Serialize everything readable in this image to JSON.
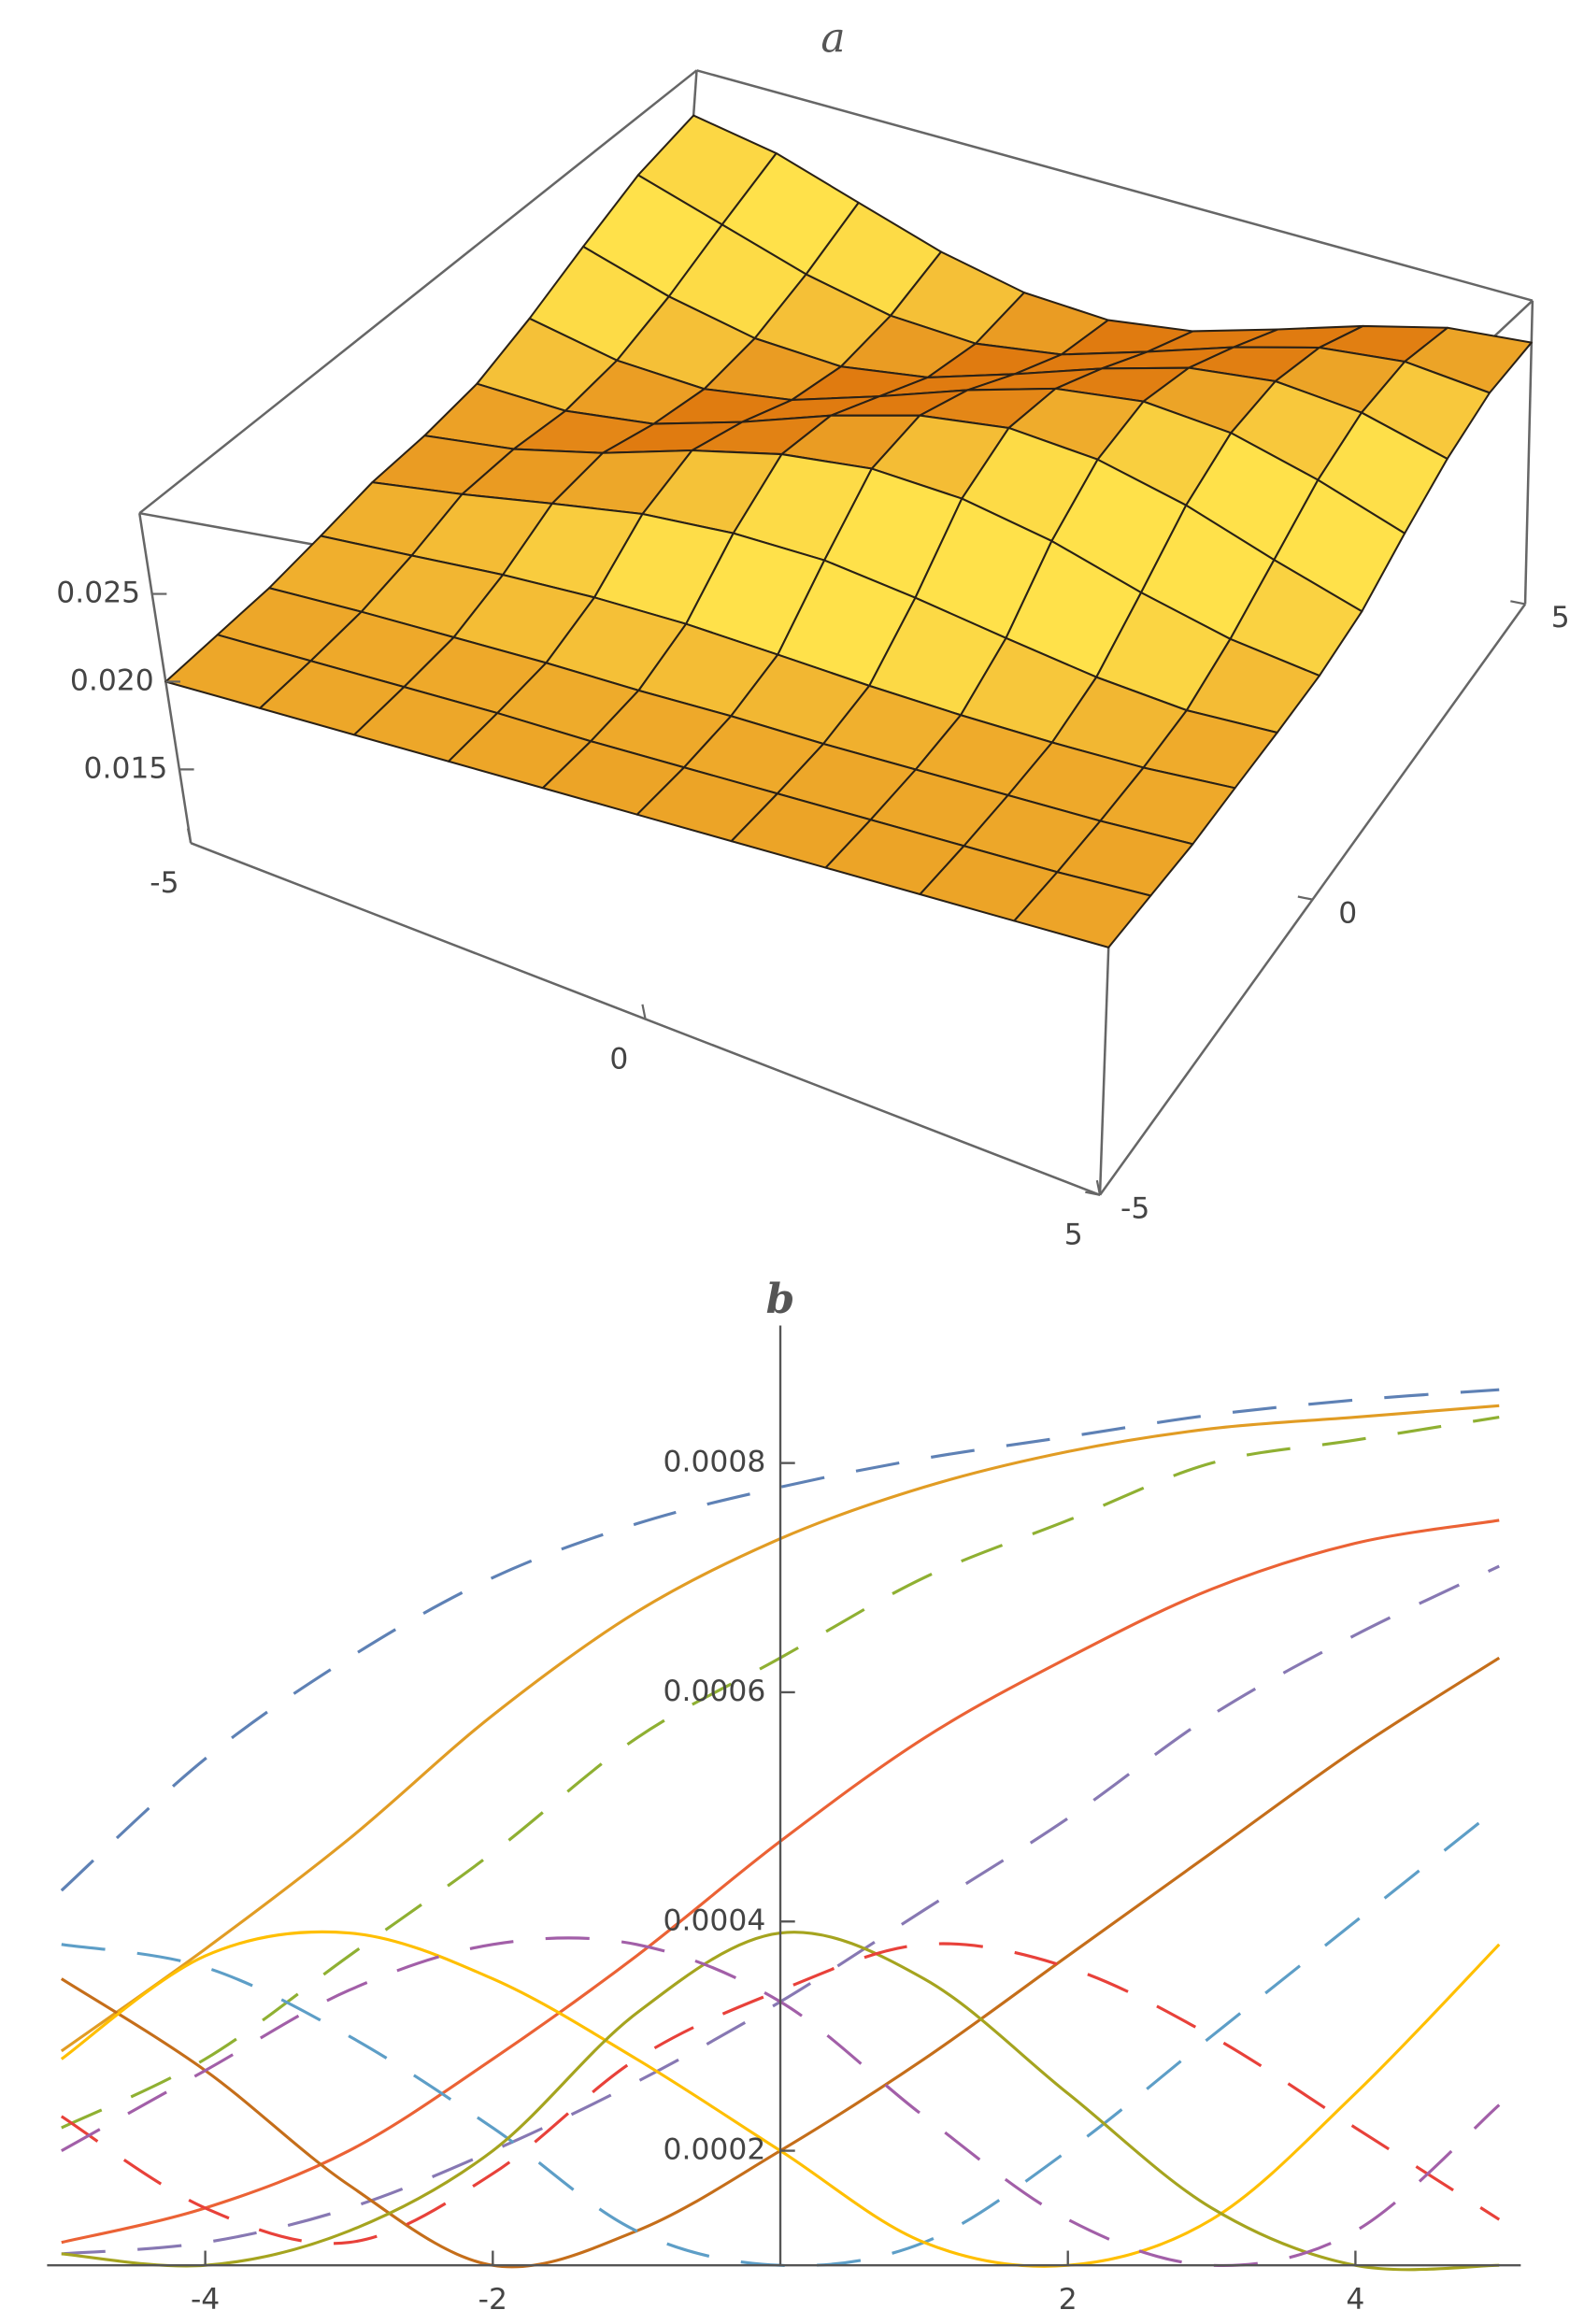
{
  "chart_data": [
    {
      "type": "surface",
      "title": "a",
      "x": [
        -5,
        -4,
        -3,
        -2,
        -1,
        0,
        1,
        2,
        3,
        4,
        5
      ],
      "y": [
        -5,
        -4,
        -3,
        -2,
        -1,
        0,
        1,
        2,
        3,
        4,
        5
      ],
      "z": [
        [
          0.02,
          0.02,
          0.02,
          0.02,
          0.02,
          0.02,
          0.02,
          0.02,
          0.02,
          0.02,
          0.02
        ],
        [
          0.0201,
          0.0201,
          0.0201,
          0.0201,
          0.02,
          0.02,
          0.02,
          0.02,
          0.02,
          0.02,
          0.0201
        ],
        [
          0.0202,
          0.0203,
          0.0203,
          0.0203,
          0.0202,
          0.0202,
          0.0201,
          0.0201,
          0.0201,
          0.0201,
          0.0202
        ],
        [
          0.0206,
          0.0209,
          0.0212,
          0.0213,
          0.0212,
          0.0209,
          0.0206,
          0.0204,
          0.0203,
          0.0203,
          0.0205
        ],
        [
          0.0211,
          0.0218,
          0.0226,
          0.0233,
          0.0235,
          0.0233,
          0.0226,
          0.0218,
          0.0211,
          0.0207,
          0.0208
        ],
        [
          0.0212,
          0.0218,
          0.0229,
          0.0243,
          0.0253,
          0.0257,
          0.0253,
          0.0243,
          0.0229,
          0.0218,
          0.0212
        ],
        [
          0.0216,
          0.0214,
          0.022,
          0.0234,
          0.025,
          0.0262,
          0.0267,
          0.0262,
          0.025,
          0.0234,
          0.022
        ],
        [
          0.0228,
          0.0217,
          0.0214,
          0.0221,
          0.0236,
          0.0252,
          0.0265,
          0.027,
          0.0265,
          0.0252,
          0.0236
        ],
        [
          0.0244,
          0.0228,
          0.0217,
          0.0214,
          0.0221,
          0.0236,
          0.0252,
          0.0265,
          0.027,
          0.0265,
          0.0252
        ],
        [
          0.026,
          0.0244,
          0.0228,
          0.0217,
          0.0214,
          0.0221,
          0.0236,
          0.0252,
          0.0265,
          0.027,
          0.0265
        ],
        [
          0.0269,
          0.026,
          0.0244,
          0.0228,
          0.0217,
          0.0214,
          0.0221,
          0.0236,
          0.0252,
          0.0265,
          0.027
        ]
      ],
      "xlim": [
        -5,
        5
      ],
      "ylim": [
        -5,
        5
      ],
      "zlim": [
        0.0108,
        0.0296
      ],
      "xticks": [
        -5,
        0,
        5
      ],
      "yticks": [
        -5,
        0,
        5
      ],
      "zticks": [
        0.015,
        {
          "value": 0.02,
          "label": "0.020"
        },
        0.025
      ],
      "color_high": "#ffe14a",
      "color_low": "#e07b10",
      "mesh_color": "#2a2116"
    },
    {
      "type": "line",
      "title": "b",
      "x": [
        -5,
        -4,
        -3,
        -2,
        -1,
        0,
        1,
        2,
        3,
        4,
        5
      ],
      "xlim": [
        -5.1,
        5.15
      ],
      "ylim": [
        0.0001,
        0.00092
      ],
      "xticks": [
        -4,
        -2,
        2,
        4
      ],
      "yticks": [
        0.0002,
        0.0004,
        0.0006,
        0.0008
      ],
      "series": [
        {
          "color": "#5e81b5",
          "dashed": true,
          "values": [
            0.000427,
            0.000542,
            0.00063,
            0.0007,
            0.000747,
            0.000779,
            0.000804,
            0.000823,
            0.000842,
            0.000855,
            0.000864
          ]
        },
        {
          "color": "#e19c24",
          "dashed": false,
          "values": [
            0.000287,
            0.000376,
            0.000472,
            0.00058,
            0.00067,
            0.000734,
            0.000779,
            0.00081,
            0.00083,
            0.00084,
            0.00085
          ]
        },
        {
          "color": "#8fb032",
          "dashed": true,
          "values": [
            0.00022,
            0.00028,
            0.00037,
            0.00046,
            0.00056,
            0.00063,
            0.0007,
            0.00075,
            0.0008,
            0.00082,
            0.00084
          ]
        },
        {
          "color": "#eb6235",
          "dashed": false,
          "values": [
            0.00012,
            0.00015,
            0.0002,
            0.00028,
            0.00037,
            0.00047,
            0.00056,
            0.00063,
            0.00069,
            0.00073,
            0.00075
          ]
        },
        {
          "color": "#8778b3",
          "dashed": true,
          "values": [
            0.00011,
            0.00012,
            0.00015,
            0.0002,
            0.00026,
            0.00033,
            0.00041,
            0.00049,
            0.00058,
            0.00065,
            0.00071
          ]
        },
        {
          "color": "#c56e1a",
          "dashed": false,
          "values": [
            0.00035,
            0.00027,
            0.00017,
            0.0001,
            0.00013,
            0.0002,
            0.00028,
            0.00037,
            0.00046,
            0.00055,
            0.00063
          ]
        },
        {
          "color": "#5d9ec7",
          "dashed": true,
          "values": [
            0.00038,
            0.00036,
            0.0003,
            0.00022,
            0.00013,
            0.0001,
            0.00012,
            0.0002,
            0.0003,
            0.0004,
            0.0005
          ]
        },
        {
          "color": "#ffbf00",
          "dashed": false,
          "values": [
            0.00028,
            0.00037,
            0.00039,
            0.00035,
            0.00028,
            0.0002,
            0.00012,
            0.0001,
            0.00014,
            0.00025,
            0.00038
          ]
        },
        {
          "color": "#a5a41f",
          "dashed": false,
          "values": [
            0.00011,
            0.0001,
            0.00013,
            0.0002,
            0.00032,
            0.00039,
            0.00035,
            0.00025,
            0.00015,
            0.0001,
            0.0001
          ]
        },
        {
          "color": "#e8413a",
          "dashed": true,
          "values": [
            0.00023,
            0.00015,
            0.00012,
            0.00018,
            0.00028,
            0.00034,
            0.00038,
            0.00036,
            0.0003,
            0.00022,
            0.00014
          ]
        },
        {
          "color": "#a25fa8",
          "dashed": true,
          "values": [
            0.0002,
            0.00027,
            0.00034,
            0.00038,
            0.00038,
            0.00033,
            0.00023,
            0.00014,
            0.0001,
            0.00013,
            0.00024
          ]
        }
      ]
    }
  ]
}
